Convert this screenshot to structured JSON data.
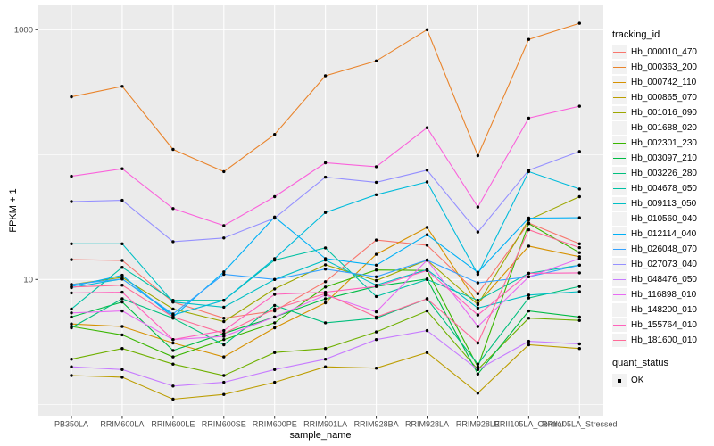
{
  "figure": {
    "background": "#FFFFFF",
    "panel_background": "#EBEBEB",
    "grid_color": "#FFFFFF",
    "axis_text_color": "#4D4D4D",
    "tick_mark_color": "#333333",
    "point_color": "#000000",
    "legend_key_background": "#F2F2F2"
  },
  "chart_data": {
    "type": "line",
    "title": "",
    "xlabel": "sample_name",
    "ylabel": "FPKM + 1",
    "y_scale": "log10",
    "grid": true,
    "legend_position": "right",
    "y_axis_ticks": [
      {
        "label": "1000",
        "value": 1000
      },
      {
        "label": "10",
        "value": 10
      }
    ],
    "y_minor_gridlines": [
      100,
      1
    ],
    "ylim": [
      0.8,
      1600
    ],
    "categories": [
      "PB350LA",
      "RRIM600LA",
      "RRIM600LE",
      "RRIM600SE",
      "RRIM600PE",
      "RRIM901LA",
      "RRIM928BA",
      "RRIM928LA",
      "RRIM928LE",
      "RRII105LA_Control",
      "RRII105LA_Stressed"
    ],
    "legend": {
      "title": "tracking_id"
    },
    "legend2": {
      "title": "quant_status",
      "items": [
        "OK"
      ]
    },
    "series": [
      {
        "tracking_id": "Hb_000010_470",
        "color": "#F8766D",
        "fpkm_plus_1": [
          14.4,
          14.2,
          6.6,
          4.9,
          5.6,
          9.6,
          20.7,
          18.8,
          7.7,
          28.3,
          19.3
        ]
      },
      {
        "tracking_id": "Hb_000363_200",
        "color": "#E9842C",
        "fpkm_plus_1": [
          290,
          352,
          110,
          73,
          145,
          427,
          562,
          1000,
          98,
          836,
          1125
        ]
      },
      {
        "tracking_id": "Hb_000742_110",
        "color": "#D69100",
        "fpkm_plus_1": [
          4.4,
          4.2,
          3.1,
          2.4,
          4.1,
          6.5,
          15.9,
          26.1,
          6.4,
          18.5,
          15.2
        ]
      },
      {
        "tracking_id": "Hb_000865_070",
        "color": "#BC9D00",
        "fpkm_plus_1": [
          1.7,
          1.65,
          1.1,
          1.2,
          1.5,
          2.0,
          1.95,
          2.6,
          1.23,
          3.0,
          2.8
        ]
      },
      {
        "tracking_id": "Hb_001016_090",
        "color": "#9DA700",
        "fpkm_plus_1": [
          9.1,
          10.4,
          5.8,
          4.6,
          8.4,
          13.1,
          9.8,
          14.3,
          6.3,
          30,
          46
        ]
      },
      {
        "tracking_id": "Hb_001688_020",
        "color": "#6FB000",
        "fpkm_plus_1": [
          2.3,
          2.8,
          2.1,
          1.7,
          2.6,
          2.8,
          3.8,
          5.6,
          1.9,
          4.9,
          4.7
        ]
      },
      {
        "tracking_id": "Hb_002301_230",
        "color": "#39B600",
        "fpkm_plus_1": [
          4.2,
          3.6,
          2.4,
          3.3,
          4.5,
          8.7,
          11.9,
          11.8,
          2.0,
          28,
          16.4
        ]
      },
      {
        "tracking_id": "Hb_003097_210",
        "color": "#00BB45",
        "fpkm_plus_1": [
          5.0,
          6.6,
          2.7,
          3.7,
          5.0,
          7.0,
          8.8,
          10.1,
          1.75,
          5.6,
          5.0
        ]
      },
      {
        "tracking_id": "Hb_003226_280",
        "color": "#00BF7D",
        "fpkm_plus_1": [
          4.1,
          7.0,
          4.9,
          3.0,
          6.2,
          4.5,
          4.9,
          7.0,
          2.1,
          7.1,
          8.8
        ]
      },
      {
        "tracking_id": "Hb_004678_050",
        "color": "#00C1A3",
        "fpkm_plus_1": [
          5.8,
          12.5,
          6.8,
          6.8,
          14.3,
          17.9,
          7.3,
          10.0,
          6.8,
          11.2,
          13.0
        ]
      },
      {
        "tracking_id": "Hb_009113_050",
        "color": "#00BFC4",
        "fpkm_plus_1": [
          19.3,
          19.3,
          6.6,
          6.0,
          10.0,
          14.3,
          9.0,
          12.0,
          5.9,
          7.5,
          8.0
        ]
      },
      {
        "tracking_id": "Hb_010560_040",
        "color": "#00BBDB",
        "fpkm_plus_1": [
          8.6,
          10.1,
          5.2,
          6.8,
          14.7,
          34.4,
          47.7,
          60.4,
          11.0,
          73,
          53
        ]
      },
      {
        "tracking_id": "Hb_012114_040",
        "color": "#00B0F6",
        "fpkm_plus_1": [
          8.8,
          10.8,
          5.0,
          11.5,
          31.6,
          14.7,
          13.0,
          22.8,
          11.4,
          31,
          31.2
        ]
      },
      {
        "tracking_id": "Hb_026048_070",
        "color": "#35A2FF",
        "fpkm_plus_1": [
          9.1,
          10.1,
          5.3,
          11.0,
          10.0,
          12.1,
          10.5,
          14.3,
          9.4,
          10.5,
          13.0
        ]
      },
      {
        "tracking_id": "Hb_027073_040",
        "color": "#9590FF",
        "fpkm_plus_1": [
          42,
          43,
          20.1,
          21.5,
          31,
          66,
          60,
          75,
          24,
          75,
          106
        ]
      },
      {
        "tracking_id": "Hb_048476_050",
        "color": "#C77CFF",
        "fpkm_plus_1": [
          2.0,
          1.9,
          1.4,
          1.5,
          1.9,
          2.3,
          3.3,
          3.9,
          1.9,
          3.2,
          3.05
        ]
      },
      {
        "tracking_id": "Hb_116898_010",
        "color": "#E76BF3",
        "fpkm_plus_1": [
          5.4,
          5.6,
          3.3,
          3.5,
          5.0,
          7.5,
          5.5,
          14.3,
          4.2,
          10.5,
          14.7
        ]
      },
      {
        "tracking_id": "Hb_148200_010",
        "color": "#FA62DB",
        "fpkm_plus_1": [
          67,
          77,
          37,
          27,
          46,
          86,
          80,
          164,
          38,
          196,
          244
        ]
      },
      {
        "tracking_id": "Hb_155764_010",
        "color": "#FF62BC",
        "fpkm_plus_1": [
          7.8,
          7.9,
          3.3,
          3.9,
          7.6,
          7.9,
          8.8,
          11.8,
          5.2,
          11.2,
          11.3
        ]
      },
      {
        "tracking_id": "Hb_181600_010",
        "color": "#FF6A98",
        "fpkm_plus_1": [
          8.7,
          9.0,
          5.0,
          3.7,
          5.8,
          7.7,
          5.0,
          7.0,
          3.1,
          25,
          18
        ]
      }
    ]
  }
}
